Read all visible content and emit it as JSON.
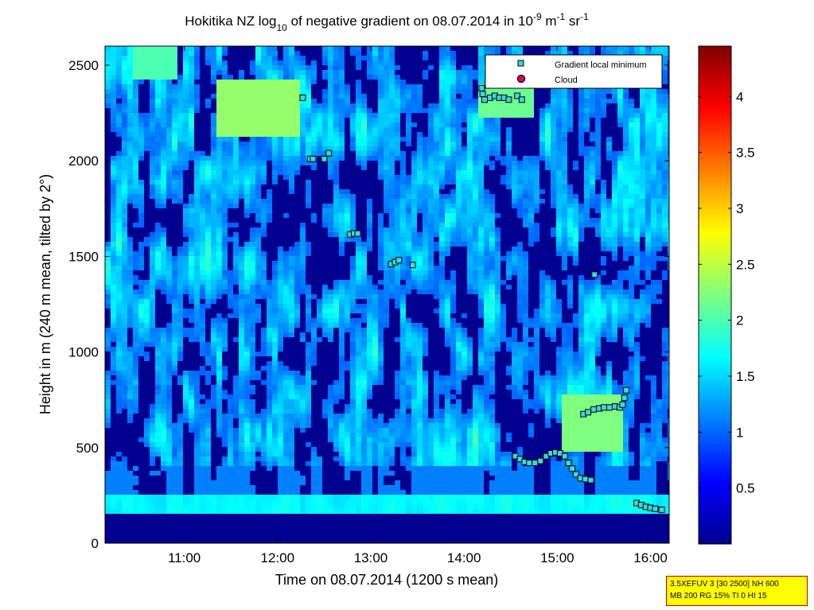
{
  "chart_data": {
    "type": "heatmap",
    "title": {
      "pre": "Hokitika NZ log",
      "sub": "10",
      "mid": " of negative gradient on 08.07.2014 in 10",
      "sup1": "-9",
      "mid2": " m",
      "sup2": "-1",
      "mid3": " sr",
      "sup3": "-1"
    },
    "xlabel": "Time on 08.07.2014 (1200 s mean)",
    "ylabel": "Height in m (240 m mean, tilted by 2°)",
    "xlim_hours": [
      10.15,
      16.2
    ],
    "ylim": [
      0,
      2600
    ],
    "x_ticks": [
      {
        "hour": 11,
        "label": "11:00"
      },
      {
        "hour": 12,
        "label": "12:00"
      },
      {
        "hour": 13,
        "label": "13:00"
      },
      {
        "hour": 14,
        "label": "14:00"
      },
      {
        "hour": 15,
        "label": "15:00"
      },
      {
        "hour": 16,
        "label": "16:00"
      }
    ],
    "y_ticks": [
      {
        "value": 0,
        "label": "0"
      },
      {
        "value": 500,
        "label": "500"
      },
      {
        "value": 1000,
        "label": "1000"
      },
      {
        "value": 1500,
        "label": "1500"
      },
      {
        "value": 2000,
        "label": "2000"
      },
      {
        "value": 2500,
        "label": "2500"
      }
    ],
    "colorbar": {
      "range": [
        0,
        4.45
      ],
      "colormap": "jet",
      "ticks": [
        {
          "value": 0.5,
          "label": "0.5"
        },
        {
          "value": 1.0,
          "label": "1"
        },
        {
          "value": 1.5,
          "label": "1.5"
        },
        {
          "value": 2.0,
          "label": "2"
        },
        {
          "value": 2.5,
          "label": "2.5"
        },
        {
          "value": 3.0,
          "label": "3"
        },
        {
          "value": 3.5,
          "label": "3.5"
        },
        {
          "value": 4.0,
          "label": "4"
        }
      ]
    },
    "legend": {
      "placement": "top-right",
      "entries": [
        {
          "label": "Gradient local minimum",
          "marker": "square",
          "color": "#3fd7d7"
        },
        {
          "label": "Cloud",
          "marker": "circle",
          "color": "#ff0000"
        }
      ]
    },
    "series": [
      {
        "name": "Gradient local minimum",
        "marker": "square",
        "points": [
          [
            12.27,
            2330
          ],
          [
            12.35,
            2010
          ],
          [
            12.38,
            2010
          ],
          [
            12.5,
            2010
          ],
          [
            12.55,
            2040
          ],
          [
            12.78,
            1615
          ],
          [
            12.82,
            1620
          ],
          [
            12.86,
            1620
          ],
          [
            13.22,
            1460
          ],
          [
            13.26,
            1470
          ],
          [
            13.3,
            1480
          ],
          [
            13.45,
            1455
          ],
          [
            14.19,
            2380
          ],
          [
            14.2,
            2350
          ],
          [
            14.22,
            2320
          ],
          [
            14.28,
            2330
          ],
          [
            14.33,
            2340
          ],
          [
            14.38,
            2330
          ],
          [
            14.43,
            2330
          ],
          [
            14.48,
            2320
          ],
          [
            14.57,
            2340
          ],
          [
            14.62,
            2320
          ],
          [
            15.4,
            1405
          ],
          [
            14.55,
            455
          ],
          [
            14.6,
            440
          ],
          [
            14.65,
            425
          ],
          [
            14.7,
            420
          ],
          [
            14.76,
            420
          ],
          [
            14.82,
            430
          ],
          [
            14.88,
            455
          ],
          [
            14.93,
            470
          ],
          [
            14.98,
            475
          ],
          [
            15.03,
            470
          ],
          [
            15.08,
            455
          ],
          [
            15.12,
            420
          ],
          [
            15.16,
            390
          ],
          [
            15.2,
            360
          ],
          [
            15.25,
            340
          ],
          [
            15.3,
            335
          ],
          [
            15.36,
            330
          ],
          [
            15.28,
            675
          ],
          [
            15.33,
            685
          ],
          [
            15.39,
            700
          ],
          [
            15.45,
            705
          ],
          [
            15.5,
            710
          ],
          [
            15.56,
            710
          ],
          [
            15.62,
            715
          ],
          [
            15.67,
            710
          ],
          [
            15.7,
            725
          ],
          [
            15.72,
            760
          ],
          [
            15.74,
            800
          ],
          [
            15.85,
            210
          ],
          [
            15.9,
            200
          ],
          [
            15.95,
            190
          ],
          [
            16.0,
            185
          ],
          [
            16.05,
            180
          ],
          [
            16.12,
            175
          ]
        ]
      },
      {
        "name": "Cloud",
        "marker": "circle",
        "points": []
      }
    ]
  },
  "annotation": {
    "line1": "3.5XEFUV 3 [30 2500] NH 600",
    "line2": "MB 200 RG 15% TI 0 HI 15"
  }
}
